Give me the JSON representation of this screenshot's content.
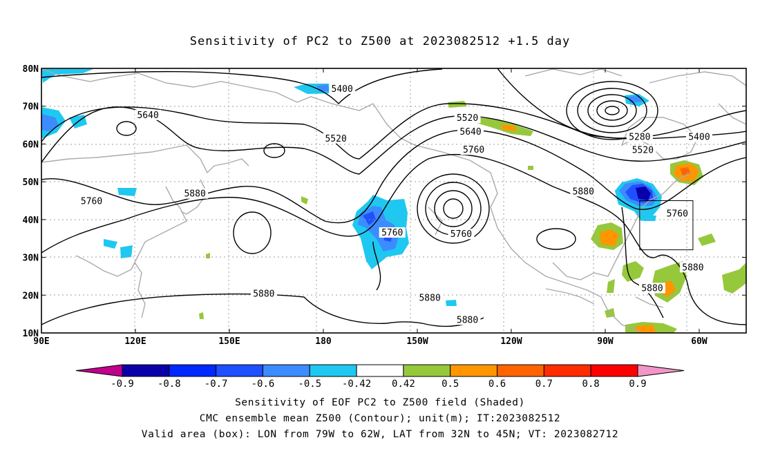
{
  "chart_data": {
    "type": "heatmap",
    "title": "Sensitivity of PC2 to Z500 at 2023082512 +1.5 day",
    "x_ticks": [
      "90E",
      "120E",
      "150E",
      "180",
      "150W",
      "120W",
      "90W",
      "60W"
    ],
    "y_ticks": [
      "80N",
      "70N",
      "60N",
      "50N",
      "40N",
      "30N",
      "20N",
      "10N"
    ],
    "colorbar": {
      "levels": [
        "-0.9",
        "-0.8",
        "-0.7",
        "-0.6",
        "-0.5",
        "-0.42",
        "0.42",
        "0.5",
        "0.6",
        "0.7",
        "0.8",
        "0.9"
      ],
      "colors": [
        "#c0008c",
        "#0a00a8",
        "#0028ff",
        "#1e50ff",
        "#3c8cff",
        "#1ec8f0",
        "#ffffff",
        "#96c83c",
        "#ff9600",
        "#ff6400",
        "#ff2d00",
        "#ff0000",
        "#f096c8"
      ]
    },
    "contour_labels": [
      {
        "text": "5400",
        "lon": 186,
        "lat": 74.5
      },
      {
        "text": "5640",
        "lon": 124,
        "lat": 67.6
      },
      {
        "text": "5520",
        "lon": 184,
        "lat": 61.4
      },
      {
        "text": "5520",
        "lon": 226,
        "lat": 66.8
      },
      {
        "text": "5640",
        "lon": 227,
        "lat": 63.2
      },
      {
        "text": "5760",
        "lon": 228,
        "lat": 58.4
      },
      {
        "text": "5280",
        "lon": 281,
        "lat": 61.8
      },
      {
        "text": "5400",
        "lon": 300,
        "lat": 61.8
      },
      {
        "text": "5520",
        "lon": 282,
        "lat": 58.3
      },
      {
        "text": "5880",
        "lon": 263,
        "lat": 47.4
      },
      {
        "text": "5760",
        "lon": 106,
        "lat": 44.8
      },
      {
        "text": "5880",
        "lon": 139,
        "lat": 46.8
      },
      {
        "text": "5760",
        "lon": 202,
        "lat": 36.5
      },
      {
        "text": "5760",
        "lon": 224,
        "lat": 36.1
      },
      {
        "text": "5760",
        "lon": 293,
        "lat": 41.5
      },
      {
        "text": "5880",
        "lon": 298,
        "lat": 27.3
      },
      {
        "text": "5880",
        "lon": 285,
        "lat": 21.8
      },
      {
        "text": "5880",
        "lon": 161,
        "lat": 20.3
      },
      {
        "text": "5880",
        "lon": 214,
        "lat": 19.2
      },
      {
        "text": "5880",
        "lon": 226,
        "lat": 13.4
      }
    ],
    "valid_box": {
      "lon": [
        281,
        298
      ],
      "lat": [
        32,
        45
      ]
    }
  },
  "footer": {
    "line1": "Sensitivity of EOF PC2 to Z500 field (Shaded)",
    "line2": "CMC ensemble mean Z500 (Contour); unit(m); IT:2023082512",
    "line3": "Valid area (box): LON from 79W to 62W, LAT from 32N to 45N; VT: 2023082712"
  }
}
